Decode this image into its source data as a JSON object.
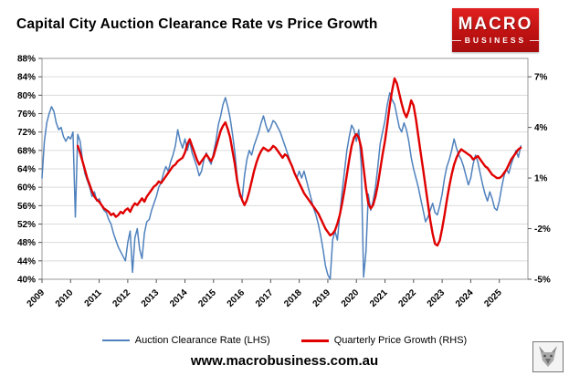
{
  "header": {
    "logo": {
      "line1": "MACRO",
      "line2": "BUSINESS"
    }
  },
  "footer": {
    "website": "www.macrobusiness.com.au"
  },
  "chart_data": {
    "type": "line",
    "title": "Capital City Auction Clearance Rate vs Price Growth",
    "grid": true,
    "legend_position": "bottom",
    "x_min": 2009,
    "x_max": 2026,
    "x_ticks": [
      "2009",
      "2010",
      "2011",
      "2012",
      "2013",
      "2014",
      "2015",
      "2016",
      "2017",
      "2018",
      "2019",
      "2020",
      "2021",
      "2022",
      "2023",
      "2024",
      "2025"
    ],
    "y_left": {
      "min": 40,
      "max": 88,
      "ticks": [
        {
          "label": "88%",
          "value": 88
        },
        {
          "label": "84%",
          "value": 84
        },
        {
          "label": "80%",
          "value": 80
        },
        {
          "label": "76%",
          "value": 76
        },
        {
          "label": "72%",
          "value": 72
        },
        {
          "label": "68%",
          "value": 68
        },
        {
          "label": "64%",
          "value": 64
        },
        {
          "label": "60%",
          "value": 60
        },
        {
          "label": "56%",
          "value": 56
        },
        {
          "label": "52%",
          "value": 52
        },
        {
          "label": "48%",
          "value": 48
        },
        {
          "label": "44%",
          "value": 44
        },
        {
          "label": "40%",
          "value": 40
        }
      ]
    },
    "y_right": {
      "min": -5,
      "max": 8.09,
      "ticks": [
        {
          "label": "7%",
          "value": 7
        },
        {
          "label": "4%",
          "value": 4
        },
        {
          "label": "1%",
          "value": 1
        },
        {
          "label": "-2%",
          "value": -2
        },
        {
          "label": "-5%",
          "value": -5
        }
      ]
    },
    "series": [
      {
        "name": "Auction Clearance Rate (LHS)",
        "axis": "left",
        "color": "#4f81bd",
        "width": 1.5,
        "x_start": 2009.0,
        "points_per_year": 12,
        "values": [
          62,
          70,
          74,
          76,
          77.5,
          76.5,
          74,
          72.5,
          73,
          71,
          70,
          71,
          70.5,
          72,
          53.5,
          71.5,
          70,
          66,
          63,
          61.5,
          60,
          58,
          59,
          57,
          57.5,
          56,
          55,
          54.5,
          53,
          52,
          50,
          48.5,
          47,
          46,
          45,
          44,
          48,
          50.5,
          41.5,
          49,
          51,
          46.5,
          44.5,
          50,
          52.5,
          53,
          55,
          56.5,
          58,
          60,
          61,
          63,
          64.5,
          63.5,
          65.5,
          67,
          69,
          72.5,
          70,
          68.5,
          70.5,
          68,
          70,
          67.5,
          66,
          64.5,
          62.5,
          63.5,
          66,
          67.5,
          66,
          65,
          67.5,
          70,
          73.5,
          75.5,
          78,
          79.5,
          77.5,
          75,
          71.5,
          67.5,
          62,
          58,
          57.5,
          62.5,
          66,
          68,
          67,
          69,
          70.5,
          72,
          74,
          75.5,
          73.5,
          72,
          73,
          74.5,
          74,
          73,
          72,
          70.5,
          69,
          67.5,
          66,
          64.5,
          63,
          62,
          63.5,
          62,
          63.5,
          61.5,
          59.5,
          57.5,
          55.5,
          54,
          52,
          49.5,
          46.5,
          43,
          41,
          40,
          48.5,
          50.5,
          48.5,
          54,
          59,
          63.5,
          68,
          71,
          73.5,
          72.5,
          70,
          72.5,
          65,
          40.5,
          46,
          58.5,
          55,
          57,
          60,
          64.5,
          69.5,
          72,
          74.5,
          78,
          80.5,
          79,
          78,
          75.5,
          73,
          72,
          74,
          72.5,
          70,
          66.5,
          64,
          62,
          60,
          57.5,
          55,
          52.5,
          53.5,
          55,
          56.5,
          54.5,
          54,
          56,
          58.5,
          62,
          64.5,
          66,
          68,
          70.5,
          68.5,
          67,
          66,
          64.5,
          62.5,
          60.5,
          62,
          65,
          67,
          65.5,
          63,
          60.5,
          58.5,
          57,
          59,
          57.5,
          55.5,
          55,
          57,
          60,
          62.5,
          64,
          63,
          65,
          66.5,
          68,
          66.5,
          69
        ]
      },
      {
        "name": "Quarterly Price Growth (RHS)",
        "axis": "right",
        "color": "#e00000",
        "width": 2.4,
        "x_start": 2010.25,
        "points_per_year": 12,
        "values": [
          2.9,
          2.5,
          2.0,
          1.5,
          1.0,
          0.6,
          0.2,
          -0.1,
          -0.3,
          -0.4,
          -0.6,
          -0.8,
          -0.9,
          -1.0,
          -1.2,
          -1.1,
          -1.3,
          -1.2,
          -1.0,
          -1.1,
          -0.9,
          -0.8,
          -1.0,
          -0.7,
          -0.5,
          -0.6,
          -0.4,
          -0.2,
          -0.4,
          -0.1,
          0.1,
          0.3,
          0.5,
          0.6,
          0.8,
          0.7,
          0.9,
          1.1,
          1.3,
          1.5,
          1.7,
          1.8,
          2.0,
          2.1,
          2.2,
          2.5,
          3.0,
          3.3,
          2.9,
          2.5,
          2.1,
          1.8,
          2.0,
          2.2,
          2.4,
          2.2,
          2.0,
          2.3,
          2.8,
          3.3,
          3.8,
          4.1,
          4.3,
          3.9,
          3.4,
          2.6,
          1.8,
          0.8,
          0.1,
          -0.3,
          -0.6,
          -0.3,
          0.2,
          0.8,
          1.4,
          1.9,
          2.3,
          2.6,
          2.8,
          2.7,
          2.6,
          2.7,
          2.9,
          2.8,
          2.6,
          2.4,
          2.2,
          2.4,
          2.3,
          2.0,
          1.7,
          1.3,
          1.0,
          0.7,
          0.4,
          0.1,
          -0.1,
          -0.3,
          -0.5,
          -0.7,
          -0.9,
          -1.1,
          -1.4,
          -1.7,
          -2.0,
          -2.2,
          -2.4,
          -2.3,
          -2.1,
          -1.7,
          -1.2,
          -0.5,
          0.3,
          1.2,
          2.1,
          2.9,
          3.4,
          3.6,
          3.4,
          2.8,
          1.6,
          0.4,
          -0.5,
          -0.8,
          -0.6,
          -0.1,
          0.6,
          1.5,
          2.4,
          3.2,
          4.2,
          5.3,
          6.2,
          6.9,
          6.6,
          6.0,
          5.4,
          4.9,
          4.6,
          5.0,
          5.6,
          5.3,
          4.5,
          3.5,
          2.5,
          1.5,
          0.5,
          -0.5,
          -1.5,
          -2.3,
          -2.9,
          -3.0,
          -2.7,
          -2.0,
          -1.2,
          -0.3,
          0.5,
          1.2,
          1.8,
          2.2,
          2.5,
          2.7,
          2.6,
          2.5,
          2.4,
          2.3,
          2.1,
          2.2,
          2.3,
          2.1,
          1.9,
          1.7,
          1.6,
          1.4,
          1.2,
          1.1,
          1.0,
          1.0,
          1.1,
          1.3,
          1.5,
          1.8,
          2.1,
          2.3,
          2.5,
          2.7,
          2.8
        ]
      }
    ]
  }
}
